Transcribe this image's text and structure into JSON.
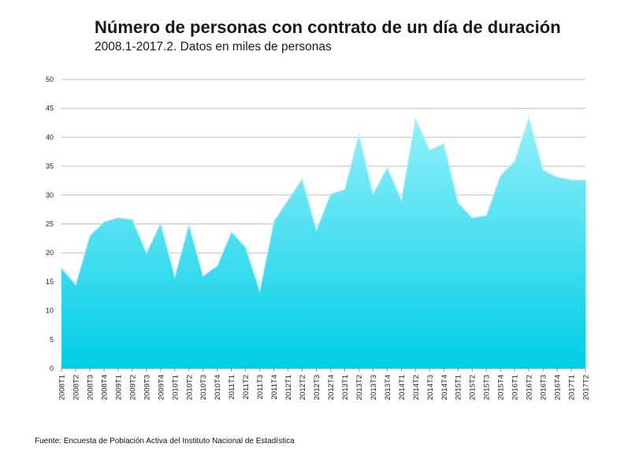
{
  "chart_data": {
    "type": "area",
    "title": "Número de personas con contrato de un día de duración",
    "subtitle": "2008.1-2017.2. Datos en miles de personas",
    "xlabel": "",
    "ylabel": "",
    "ylim": [
      0,
      50
    ],
    "yticks": [
      0,
      5,
      10,
      15,
      20,
      25,
      30,
      35,
      40,
      45,
      50
    ],
    "grid": true,
    "legend": "none",
    "categories": [
      "2008T1",
      "2008T2",
      "2008T3",
      "2008T4",
      "2009T1",
      "2009T2",
      "2009T3",
      "2009T4",
      "2010T1",
      "2010T2",
      "2010T3",
      "2010T4",
      "2011T1",
      "2011T2",
      "2011T3",
      "2011T4",
      "2012T1",
      "2012T2",
      "2012T3",
      "2012T4",
      "2013T1",
      "2013T2",
      "2013T3",
      "2013T4",
      "2014T1",
      "2014T2",
      "2014T3",
      "2014T4",
      "2015T1",
      "2015T2",
      "2015T3",
      "2015T4",
      "2016T1",
      "2016T2",
      "2016T3",
      "2016T4",
      "2017T1",
      "2017T2"
    ],
    "values": [
      17.4,
      14.5,
      23.0,
      25.4,
      26.1,
      25.8,
      20.0,
      25.2,
      15.9,
      25.0,
      16.0,
      17.8,
      23.7,
      21.0,
      13.5,
      25.5,
      29.2,
      32.8,
      24.0,
      30.2,
      31.0,
      40.5,
      30.2,
      34.8,
      29.2,
      43.2,
      37.8,
      38.9,
      28.7,
      26.1,
      26.5,
      33.4,
      35.9,
      43.4,
      34.4,
      33.1,
      32.7,
      32.6
    ],
    "fill_top": "#93f1fb",
    "fill_bottom": "#00cde6",
    "source": "Fuente: Encuesta de Población Activa del Instituto Nacional de Estadística"
  }
}
